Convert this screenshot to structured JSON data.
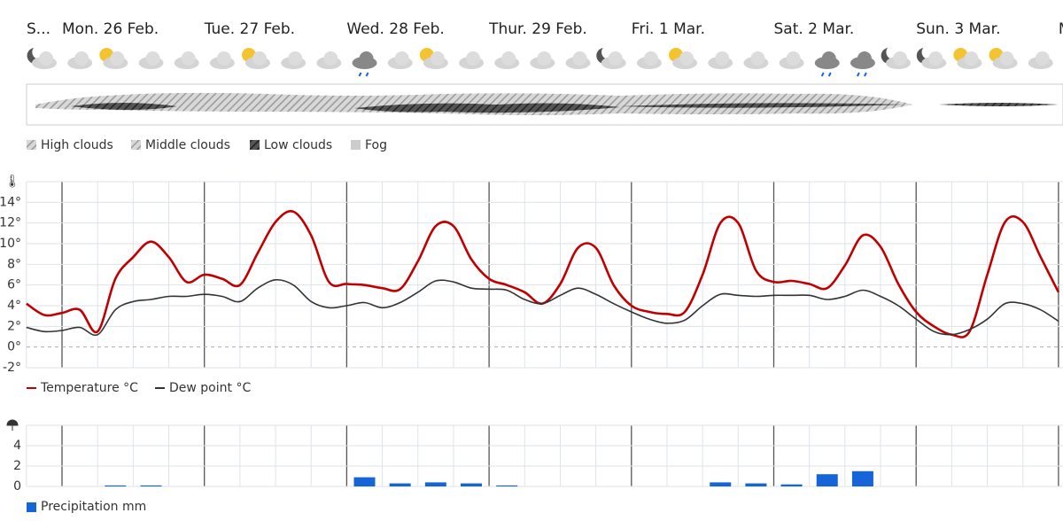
{
  "days": [
    "S...",
    "Mon. 26 Feb.",
    "Tue. 27 Feb.",
    "Wed. 28 Feb.",
    "Thur. 29 Feb.",
    "Fri. 1 Mar.",
    "Sat. 2 Mar.",
    "Sun. 3 Mar.",
    "M"
  ],
  "cloud_legend": [
    "High clouds",
    "Middle clouds",
    "Low clouds",
    "Fog"
  ],
  "chart_data": [
    {
      "type": "line",
      "ylim": [
        -2,
        16
      ],
      "yticks": [
        {
          "value": -2,
          "label": "-2°"
        },
        {
          "value": 0,
          "label": "0°"
        },
        {
          "value": 2,
          "label": "2°"
        },
        {
          "value": 4,
          "label": "4°"
        },
        {
          "value": 6,
          "label": "6°"
        },
        {
          "value": 8,
          "label": "8°"
        },
        {
          "value": 10,
          "label": "10°"
        },
        {
          "value": 12,
          "label": "12°"
        },
        {
          "value": 14,
          "label": "14°"
        }
      ],
      "grid": true,
      "series": [
        {
          "name": "Temperature °C",
          "color": "#c00000",
          "values": [
            4.2,
            3.1,
            3.3,
            3.6,
            1.5,
            6.6,
            8.7,
            10.2,
            8.7,
            6.3,
            7.0,
            6.6,
            6.0,
            9.1,
            12.1,
            13.1,
            10.8,
            6.3,
            6.1,
            6.0,
            5.7,
            5.6,
            8.3,
            11.7,
            11.7,
            8.5,
            6.6,
            6.0,
            5.3,
            4.2,
            6.1,
            9.6,
            9.6,
            6.0,
            4.0,
            3.4,
            3.2,
            3.4,
            7.0,
            12.0,
            12.0,
            7.4,
            6.3,
            6.4,
            6.1,
            5.7,
            7.9,
            10.8,
            9.7,
            6.1,
            3.4,
            2.0,
            1.2,
            1.5,
            7.0,
            12.1,
            12.1,
            8.7,
            5.3
          ]
        },
        {
          "name": "Dew point °C",
          "color": "#333333",
          "values": [
            1.9,
            1.5,
            1.6,
            1.9,
            1.2,
            3.6,
            4.4,
            4.6,
            4.9,
            4.9,
            5.1,
            4.9,
            4.4,
            5.7,
            6.5,
            6.0,
            4.4,
            3.8,
            4.0,
            4.3,
            3.8,
            4.3,
            5.3,
            6.4,
            6.3,
            5.7,
            5.6,
            5.5,
            4.6,
            4.2,
            5.0,
            5.7,
            5.1,
            4.2,
            3.4,
            2.7,
            2.3,
            2.6,
            4.0,
            5.1,
            5.0,
            4.9,
            5.0,
            5.0,
            5.0,
            4.6,
            4.9,
            5.5,
            4.9,
            4.0,
            2.7,
            1.5,
            1.2,
            1.7,
            2.7,
            4.2,
            4.2,
            3.6,
            2.5
          ]
        }
      ]
    },
    {
      "type": "bar",
      "ylim": [
        0,
        6
      ],
      "yticks": [
        0,
        2,
        4
      ],
      "grid": true,
      "series": [
        {
          "name": "Precipitation mm",
          "color": "#1565d8",
          "values": [
            0,
            0,
            0.1,
            0.1,
            0,
            0,
            0,
            0,
            0,
            0.9,
            0.3,
            0.4,
            0.3,
            0.1,
            0,
            0,
            0,
            0,
            0,
            0.4,
            0.3,
            0.2,
            1.2,
            1.5,
            0,
            0,
            0,
            0,
            0
          ]
        }
      ]
    }
  ]
}
